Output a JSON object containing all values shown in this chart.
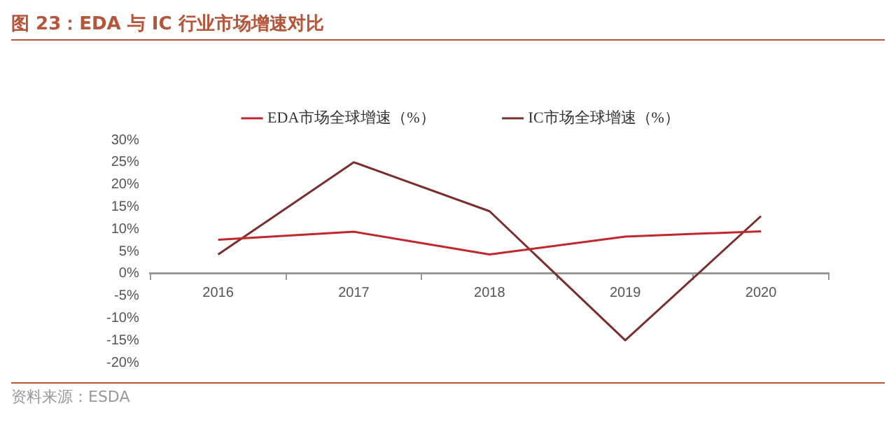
{
  "chart_data": {
    "type": "line",
    "title": "图 23：EDA 与 IC 行业市场增速对比",
    "categories": [
      "2016",
      "2017",
      "2018",
      "2019",
      "2020"
    ],
    "series": [
      {
        "name": "EDA市场全球增速（%）",
        "color": "#c0282d",
        "values": [
          7.6,
          9.4,
          4.3,
          8.3,
          9.5
        ]
      },
      {
        "name": "IC市场全球增速（%）",
        "color": "#7a2e2e",
        "values": [
          4.3,
          25.0,
          14.0,
          -15.0,
          12.9
        ]
      }
    ],
    "ylim": [
      -20,
      30
    ],
    "yticks": [
      {
        "value": -20,
        "label": "-20%"
      },
      {
        "value": -15,
        "label": "-15%"
      },
      {
        "value": -10,
        "label": "-10%"
      },
      {
        "value": -5,
        "label": "-5%"
      },
      {
        "value": 0,
        "label": "0%"
      },
      {
        "value": 5,
        "label": "5%"
      },
      {
        "value": 10,
        "label": "10%"
      },
      {
        "value": 15,
        "label": "15%"
      },
      {
        "value": 20,
        "label": "20%"
      },
      {
        "value": 25,
        "label": "25%"
      },
      {
        "value": 30,
        "label": "30%"
      }
    ],
    "grid": false,
    "legend": "top",
    "marker": "none",
    "line_style": "solid",
    "annotations": [
      "资料来源：ESDA"
    ]
  }
}
